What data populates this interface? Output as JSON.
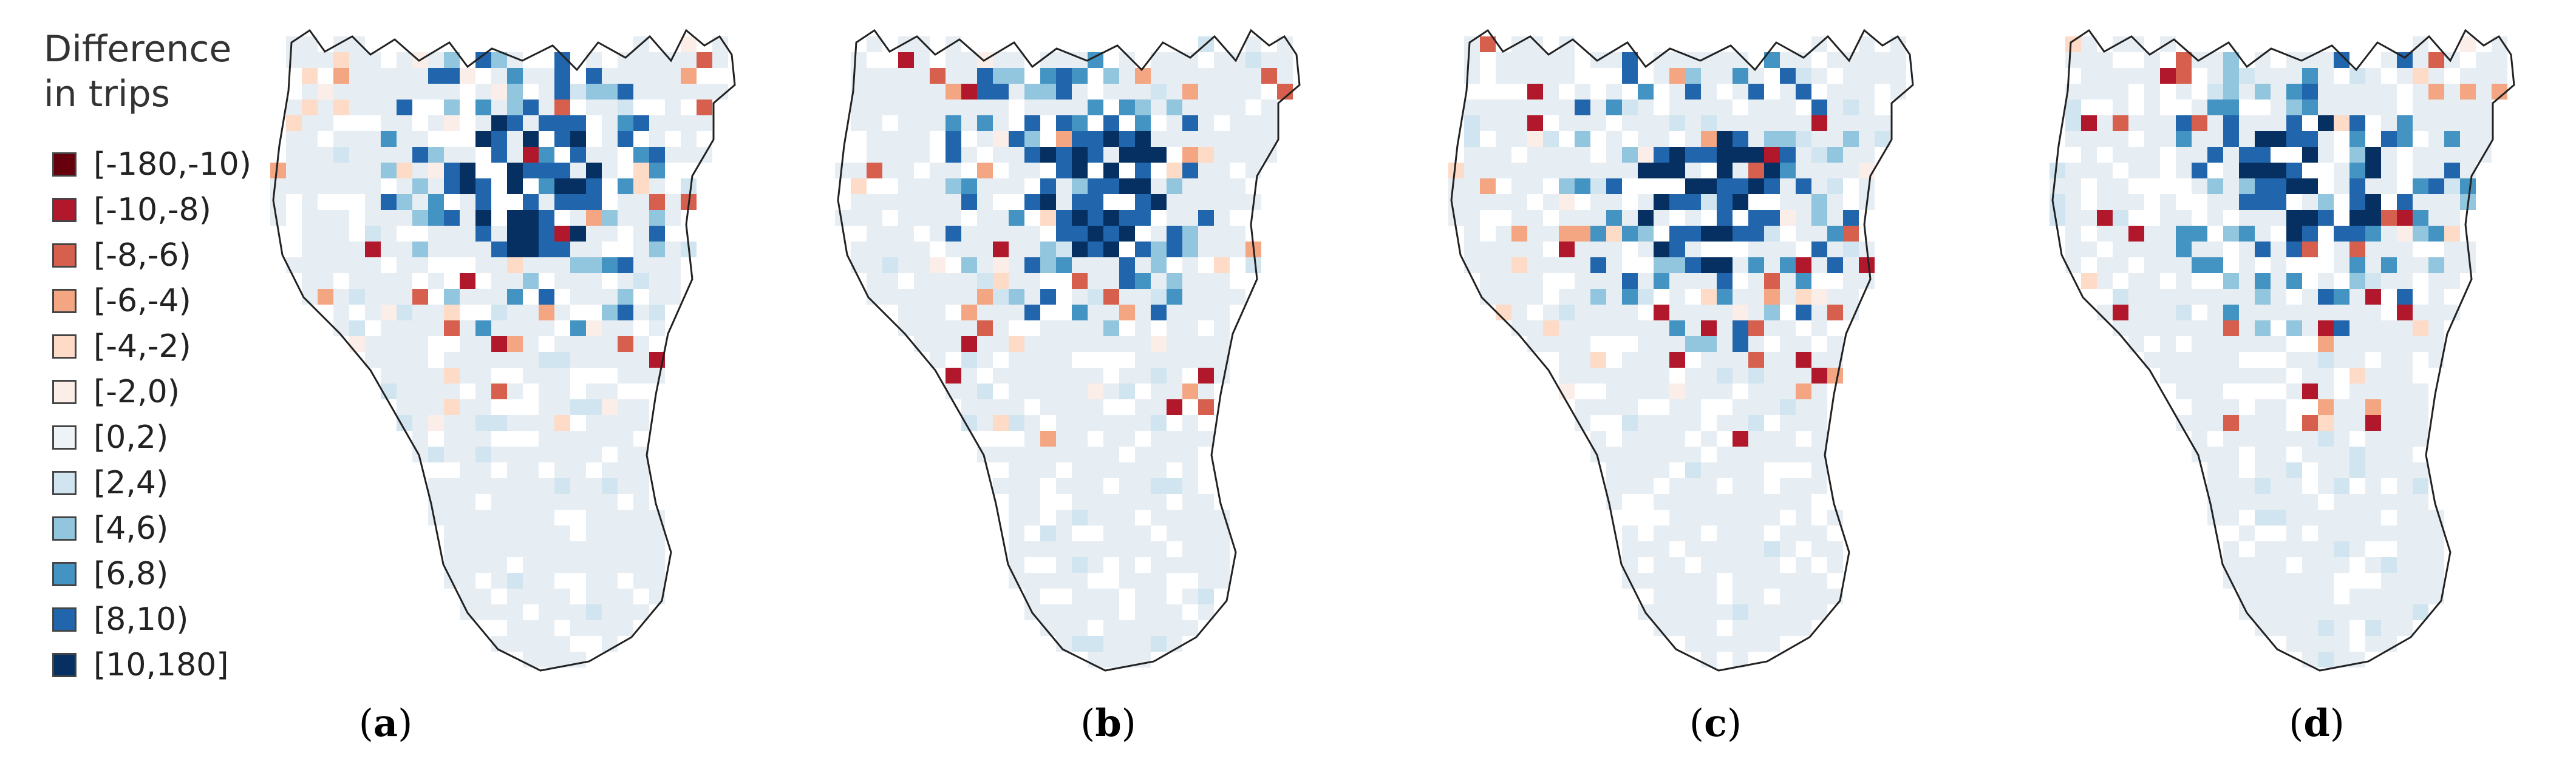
{
  "legend": {
    "title_line1": "Difference",
    "title_line2": "in trips",
    "items": [
      {
        "label": "[-180,-10)",
        "color": "#67000d"
      },
      {
        "label": "[-10,-8)",
        "color": "#b2182b"
      },
      {
        "label": "[-8,-6)",
        "color": "#d6604d"
      },
      {
        "label": "[-6,-4)",
        "color": "#f4a582"
      },
      {
        "label": "[-4,-2)",
        "color": "#fddbc7"
      },
      {
        "label": "[-2,0)",
        "color": "#fbeee8"
      },
      {
        "label": "[0,2)",
        "color": "#eef3f7"
      },
      {
        "label": "[2,4)",
        "color": "#d1e5f0"
      },
      {
        "label": "[4,6)",
        "color": "#92c5de"
      },
      {
        "label": "[6,8)",
        "color": "#4393c3"
      },
      {
        "label": "[8,10)",
        "color": "#2166ac"
      },
      {
        "label": "[10,180]",
        "color": "#053061"
      }
    ]
  },
  "panels": [
    {
      "open": "(",
      "letter": "a",
      "close": ")"
    },
    {
      "open": "(",
      "letter": "b",
      "close": ")"
    },
    {
      "open": "(",
      "letter": "c",
      "close": ")"
    },
    {
      "open": "(",
      "letter": "d",
      "close": ")"
    }
  ],
  "map_style": {
    "background_cell": "#e6edf3",
    "outline": "#222222"
  }
}
